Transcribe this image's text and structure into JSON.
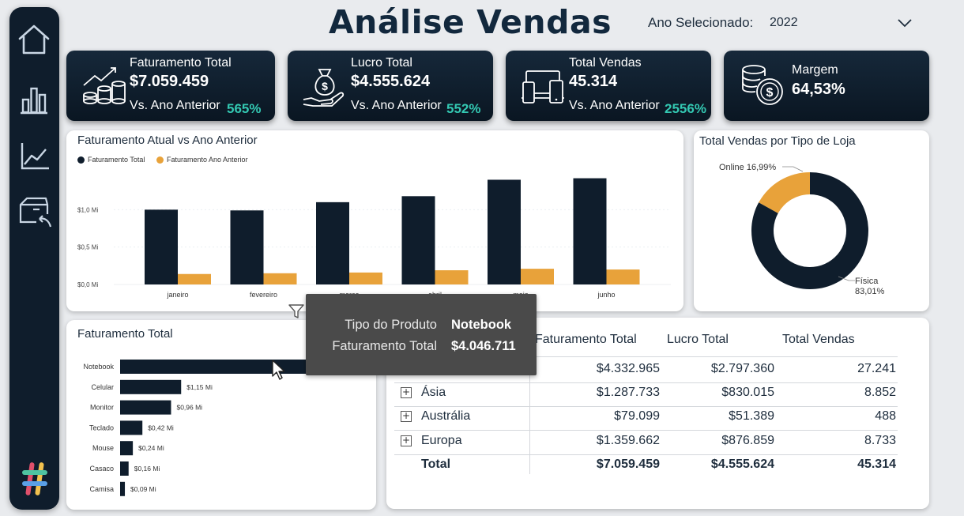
{
  "header": {
    "title": "Análise Vendas",
    "year_label": "Ano Selecionado:",
    "year_value": "2022"
  },
  "sidebar": {
    "items": [
      {
        "icon": "home-icon"
      },
      {
        "icon": "bar-chart-icon"
      },
      {
        "icon": "line-chart-icon"
      },
      {
        "icon": "box-return-icon"
      }
    ],
    "logo_icon": "hashtag-logo-icon"
  },
  "kpis": [
    {
      "title": "Faturamento Total",
      "value": "$7.059.459",
      "sub": "Vs. Ano Anterior",
      "pct": "565%",
      "icon": "coins-growth-icon"
    },
    {
      "title": "Lucro Total",
      "value": "$4.555.624",
      "sub": "Vs. Ano Anterior",
      "pct": "552%",
      "icon": "money-bag-hand-icon"
    },
    {
      "title": "Total Vendas",
      "value": "45.314",
      "sub": "Vs. Ano Anterior",
      "pct": "2556%",
      "icon": "devices-icon"
    },
    {
      "title": "Margem",
      "value": "64,53%",
      "icon": "coins-dollar-icon"
    }
  ],
  "colors": {
    "navy": "#0f1d2c",
    "orange": "#e8a23a",
    "teal": "#33c8b2"
  },
  "chart_data": [
    {
      "type": "bar",
      "title": "Faturamento Atual vs Ano Anterior",
      "categories": [
        "janeiro",
        "fevereiro",
        "março",
        "abril",
        "maio",
        "junho"
      ],
      "series": [
        {
          "name": "Faturamento Total",
          "values": [
            1.0,
            0.99,
            1.1,
            1.18,
            1.4,
            1.42
          ]
        },
        {
          "name": "Faturamento Ano Anterior",
          "values": [
            0.14,
            0.15,
            0.16,
            0.19,
            0.21,
            0.2
          ]
        }
      ],
      "y_ticks": [
        "$0,0 Mi",
        "$0,5 Mi",
        "$1,0 Mi"
      ],
      "ylim": [
        0,
        1.5
      ],
      "grid": true,
      "legend_position": "top-left"
    },
    {
      "type": "pie",
      "title": "Total Vendas por Tipo de Loja",
      "labels": [
        "Online",
        "Física"
      ],
      "values": [
        16.99,
        83.01
      ],
      "value_labels": [
        "16,99%",
        "83,01%"
      ]
    },
    {
      "type": "bar",
      "orientation": "horizontal",
      "title": "Faturamento Total",
      "categories": [
        "Notebook",
        "Celular",
        "Monitor",
        "Teclado",
        "Mouse",
        "Casaco",
        "Camisa"
      ],
      "values": [
        4.05,
        1.15,
        0.96,
        0.42,
        0.24,
        0.16,
        0.09
      ],
      "value_labels": [
        "",
        "$1,15 Mi",
        "$0,96 Mi",
        "$0,42 Mi",
        "$0,24 Mi",
        "$0,16 Mi",
        "$0,09 Mi"
      ]
    }
  ],
  "tooltip": {
    "rows": [
      {
        "key": "Tipo do Produto",
        "value": "Notebook"
      },
      {
        "key": "Faturamento Total",
        "value": "$4.046.711"
      }
    ]
  },
  "matrix": {
    "columns": [
      "Faturamento Total",
      "Lucro Total",
      "Total Vendas"
    ],
    "rows": [
      {
        "label": "",
        "values": [
          "$4.332.965",
          "$2.797.360",
          "27.241"
        ],
        "expandable": false
      },
      {
        "label": "Ásia",
        "values": [
          "$1.287.733",
          "$830.015",
          "8.852"
        ],
        "expandable": true
      },
      {
        "label": "Austrália",
        "values": [
          "$79.099",
          "$51.389",
          "488"
        ],
        "expandable": true
      },
      {
        "label": "Europa",
        "values": [
          "$1.359.662",
          "$876.859",
          "8.733"
        ],
        "expandable": true
      }
    ],
    "total": {
      "label": "Total",
      "values": [
        "$7.059.459",
        "$4.555.624",
        "45.314"
      ]
    }
  }
}
